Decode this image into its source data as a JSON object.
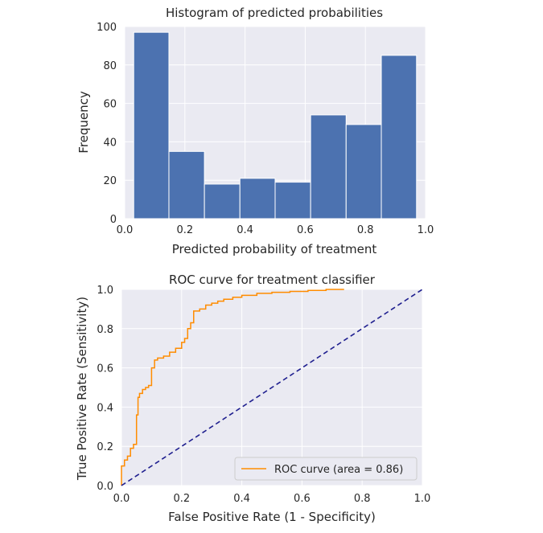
{
  "chart_data": [
    {
      "type": "bar",
      "title": "Histogram of predicted probabilities",
      "xlabel": "Predicted probability of treatment",
      "ylabel": "Frequency",
      "xlim": [
        0.0,
        1.0
      ],
      "ylim": [
        0,
        100
      ],
      "xticks": [
        "0.0",
        "0.2",
        "0.4",
        "0.6",
        "0.8",
        "1.0"
      ],
      "yticks": [
        "0",
        "20",
        "40",
        "60",
        "80",
        "100"
      ],
      "bin_edges": [
        0.03,
        0.147,
        0.265,
        0.383,
        0.5,
        0.618,
        0.736,
        0.853,
        0.97
      ],
      "values": [
        97,
        35,
        18,
        21,
        19,
        54,
        49,
        85
      ],
      "bar_color": "#4c72b0",
      "grid": true,
      "background": "#eaeaf2"
    },
    {
      "type": "line",
      "title": "ROC curve for treatment classifier",
      "xlabel": "False Positive Rate (1 - Specificity)",
      "ylabel": "True Positive Rate (Sensitivity)",
      "xlim": [
        0.0,
        1.0
      ],
      "ylim": [
        0.0,
        1.0
      ],
      "xticks": [
        "0.0",
        "0.2",
        "0.4",
        "0.6",
        "0.8",
        "1.0"
      ],
      "yticks": [
        "0.0",
        "0.2",
        "0.4",
        "0.6",
        "0.8",
        "1.0"
      ],
      "grid": true,
      "background": "#eaeaf2",
      "legend_position": "lower-right",
      "series": [
        {
          "name": "ROC curve (area = 0.86)",
          "color": "#ff8c00",
          "style": "solid",
          "x": [
            0.0,
            0.0,
            0.01,
            0.01,
            0.02,
            0.02,
            0.03,
            0.03,
            0.04,
            0.04,
            0.05,
            0.05,
            0.055,
            0.055,
            0.06,
            0.06,
            0.07,
            0.07,
            0.08,
            0.08,
            0.09,
            0.09,
            0.1,
            0.1,
            0.11,
            0.11,
            0.12,
            0.12,
            0.14,
            0.14,
            0.16,
            0.16,
            0.18,
            0.18,
            0.2,
            0.2,
            0.21,
            0.21,
            0.22,
            0.22,
            0.23,
            0.23,
            0.24,
            0.24,
            0.26,
            0.26,
            0.28,
            0.28,
            0.3,
            0.3,
            0.32,
            0.32,
            0.34,
            0.34,
            0.37,
            0.37,
            0.4,
            0.4,
            0.45,
            0.45,
            0.5,
            0.5,
            0.56,
            0.56,
            0.62,
            0.62,
            0.68,
            0.68,
            0.74
          ],
          "y": [
            0.0,
            0.1,
            0.1,
            0.13,
            0.13,
            0.15,
            0.15,
            0.19,
            0.19,
            0.21,
            0.21,
            0.36,
            0.36,
            0.45,
            0.45,
            0.47,
            0.47,
            0.49,
            0.49,
            0.5,
            0.5,
            0.51,
            0.51,
            0.6,
            0.6,
            0.64,
            0.64,
            0.65,
            0.65,
            0.66,
            0.66,
            0.68,
            0.68,
            0.7,
            0.7,
            0.73,
            0.73,
            0.75,
            0.75,
            0.8,
            0.8,
            0.83,
            0.83,
            0.89,
            0.89,
            0.9,
            0.9,
            0.92,
            0.92,
            0.93,
            0.93,
            0.94,
            0.94,
            0.95,
            0.95,
            0.96,
            0.96,
            0.97,
            0.97,
            0.98,
            0.98,
            0.985,
            0.985,
            0.99,
            0.99,
            0.995,
            0.995,
            1.0,
            1.0
          ]
        },
        {
          "name": "",
          "color": "#1f1f8f",
          "style": "dashed",
          "x": [
            0.0,
            1.0
          ],
          "y": [
            0.0,
            1.0
          ]
        }
      ]
    }
  ]
}
